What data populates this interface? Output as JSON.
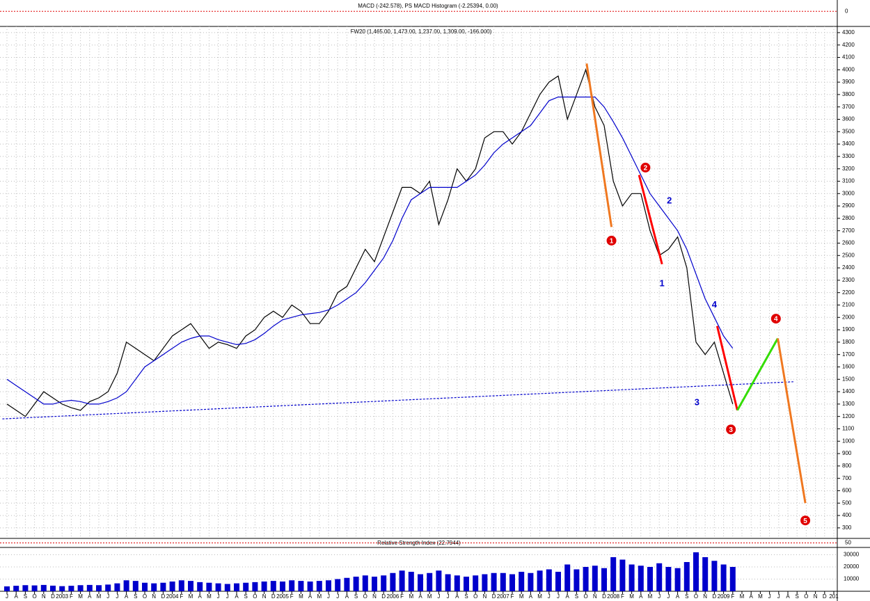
{
  "chart_data": {
    "type": "line",
    "title": "FW20 (1,465.00, 1,473.00, 1,237.00, 1,309.00, -166.000)",
    "categories": [
      "J",
      "A",
      "S",
      "O",
      "N",
      "D",
      "2003",
      "F",
      "M",
      "A",
      "M",
      "J",
      "J",
      "A",
      "S",
      "O",
      "N",
      "D",
      "2004",
      "F",
      "M",
      "A",
      "M",
      "J",
      "J",
      "A",
      "S",
      "O",
      "N",
      "D",
      "2005",
      "F",
      "M",
      "A",
      "M",
      "J",
      "J",
      "A",
      "S",
      "O",
      "N",
      "D",
      "2006",
      "F",
      "M",
      "A",
      "M",
      "J",
      "J",
      "A",
      "S",
      "O",
      "N",
      "D",
      "2007",
      "F",
      "M",
      "A",
      "M",
      "J",
      "J",
      "A",
      "S",
      "O",
      "N",
      "D",
      "2008",
      "F",
      "M",
      "A",
      "M",
      "J",
      "J",
      "A",
      "S",
      "O",
      "N",
      "D",
      "2009",
      "F",
      "M",
      "A",
      "M",
      "J",
      "J",
      "A",
      "S",
      "O",
      "N",
      "D",
      "201"
    ],
    "series": [
      {
        "color": "#000000",
        "values": [
          1300,
          1250,
          1200,
          1300,
          1400,
          1350,
          1300,
          1270,
          1250,
          1320,
          1350,
          1400,
          1550,
          1800,
          1750,
          1700,
          1650,
          1750,
          1850,
          1900,
          1950,
          1850,
          1750,
          1800,
          1780,
          1750,
          1850,
          1900,
          2000,
          2050,
          2000,
          2100,
          2050,
          1950,
          1950,
          2050,
          2200,
          2250,
          2400,
          2550,
          2450,
          2650,
          2850,
          3050,
          3050,
          3000,
          3100,
          2750,
          2950,
          3200,
          3100,
          3200,
          3450,
          3500,
          3500,
          3400,
          3500,
          3650,
          3800,
          3900,
          3950,
          3600,
          3800,
          4000,
          3700,
          3550,
          3100,
          2900,
          3000,
          3000,
          2700,
          2500,
          2550,
          2650,
          2400,
          1800,
          1700,
          1800,
          1550,
          1300,
          null,
          null,
          null,
          null,
          null,
          null,
          null,
          null,
          null,
          null,
          null
        ]
      },
      {
        "color": "#0000cc",
        "values": [
          1500,
          1450,
          1400,
          1350,
          1300,
          1300,
          1320,
          1330,
          1320,
          1300,
          1300,
          1320,
          1350,
          1400,
          1500,
          1600,
          1650,
          1700,
          1750,
          1800,
          1830,
          1850,
          1850,
          1820,
          1800,
          1780,
          1790,
          1820,
          1870,
          1930,
          1980,
          2000,
          2020,
          2030,
          2040,
          2060,
          2100,
          2150,
          2200,
          2280,
          2380,
          2480,
          2620,
          2800,
          2950,
          3000,
          3050,
          3050,
          3050,
          3050,
          3100,
          3150,
          3230,
          3330,
          3400,
          3450,
          3500,
          3550,
          3650,
          3750,
          3780,
          3780,
          3780,
          3780,
          3780,
          3700,
          3580,
          3450,
          3300,
          3150,
          3000,
          2900,
          2800,
          2700,
          2550,
          2350,
          2150,
          2000,
          1850,
          1750,
          null,
          null,
          null,
          null,
          null,
          null,
          null,
          null,
          null,
          null,
          null
        ]
      }
    ],
    "ylim": [
      215,
      4350
    ],
    "yticks": [
      300,
      400,
      500,
      600,
      700,
      800,
      900,
      1000,
      1100,
      1200,
      1300,
      1400,
      1500,
      1600,
      1700,
      1800,
      1900,
      2000,
      2100,
      2200,
      2300,
      2400,
      2500,
      2600,
      2700,
      2800,
      2900,
      3000,
      3100,
      3200,
      3300,
      3400,
      3500,
      3600,
      3700,
      3800,
      3900,
      4000,
      4100,
      4200,
      4300
    ],
    "grid": true,
    "trendline": {
      "color": "#0000cc",
      "x": [
        -0.5,
        85.6
      ],
      "values": [
        1180,
        1480
      ]
    },
    "projection": [
      {
        "color": "#f07820",
        "x": [
          63.1,
          65.8
        ],
        "values": [
          4050,
          2730
        ]
      },
      {
        "color": "#ff0000",
        "x": [
          68.8,
          71.3
        ],
        "values": [
          3150,
          2430
        ]
      },
      {
        "color": "#ff0000",
        "x": [
          77.3,
          79.5
        ],
        "values": [
          1930,
          1250
        ]
      },
      {
        "color": "#33dd00",
        "x": [
          79.5,
          83.9
        ],
        "values": [
          1250,
          1830
        ]
      },
      {
        "color": "#f07820",
        "x": [
          83.9,
          86.9
        ],
        "values": [
          1830,
          500
        ]
      }
    ],
    "wave_labels": [
      {
        "text": "1",
        "x": 65.8,
        "y": 2620,
        "style": "circle"
      },
      {
        "text": "2",
        "x": 69.5,
        "y": 3210,
        "style": "circle"
      },
      {
        "text": "3",
        "x": 78.8,
        "y": 1095,
        "style": "circle"
      },
      {
        "text": "4",
        "x": 83.7,
        "y": 1990,
        "style": "circle"
      },
      {
        "text": "5",
        "x": 86.9,
        "y": 360,
        "style": "circle"
      },
      {
        "text": "1",
        "x": 71.3,
        "y": 2270,
        "style": "plain"
      },
      {
        "text": "2",
        "x": 72.1,
        "y": 2940,
        "style": "plain"
      },
      {
        "text": "3",
        "x": 75.1,
        "y": 1310,
        "style": "plain"
      },
      {
        "text": "4",
        "x": 77.0,
        "y": 2100,
        "style": "plain"
      }
    ],
    "macd": {
      "title": "MACD (-242.578), PS MACD Histogram (-2.25394, 0.00)",
      "ylim": [
        -400,
        300
      ],
      "yticks": [
        0
      ]
    },
    "rsi": {
      "title": "Relative Strength Index (22.7944)",
      "ylim": [
        0,
        100
      ],
      "yticks": [
        50
      ]
    },
    "volume": {
      "color": "#0000cc",
      "ylim": [
        0,
        36000
      ],
      "yticks": [
        10000,
        20000,
        30000
      ],
      "values": [
        4000,
        4500,
        5000,
        4800,
        5200,
        4600,
        4200,
        4500,
        5000,
        5200,
        5000,
        5500,
        6500,
        9000,
        8500,
        7000,
        6500,
        7000,
        8000,
        9000,
        8500,
        7500,
        7000,
        6500,
        6000,
        6500,
        7000,
        7500,
        8000,
        8500,
        8000,
        9000,
        8500,
        8000,
        8500,
        9000,
        10000,
        11000,
        12000,
        13000,
        12000,
        13000,
        15000,
        17000,
        16000,
        14000,
        15000,
        17000,
        14000,
        13000,
        12000,
        13000,
        14000,
        15000,
        15000,
        14000,
        16000,
        15000,
        17000,
        18000,
        16000,
        22000,
        18000,
        20000,
        21000,
        19000,
        28000,
        26000,
        22000,
        21000,
        20000,
        23000,
        20000,
        19000,
        24000,
        32000,
        28000,
        25000,
        22000,
        20000,
        null,
        null,
        null,
        null,
        null,
        null,
        null,
        null,
        null,
        null,
        null
      ]
    }
  }
}
